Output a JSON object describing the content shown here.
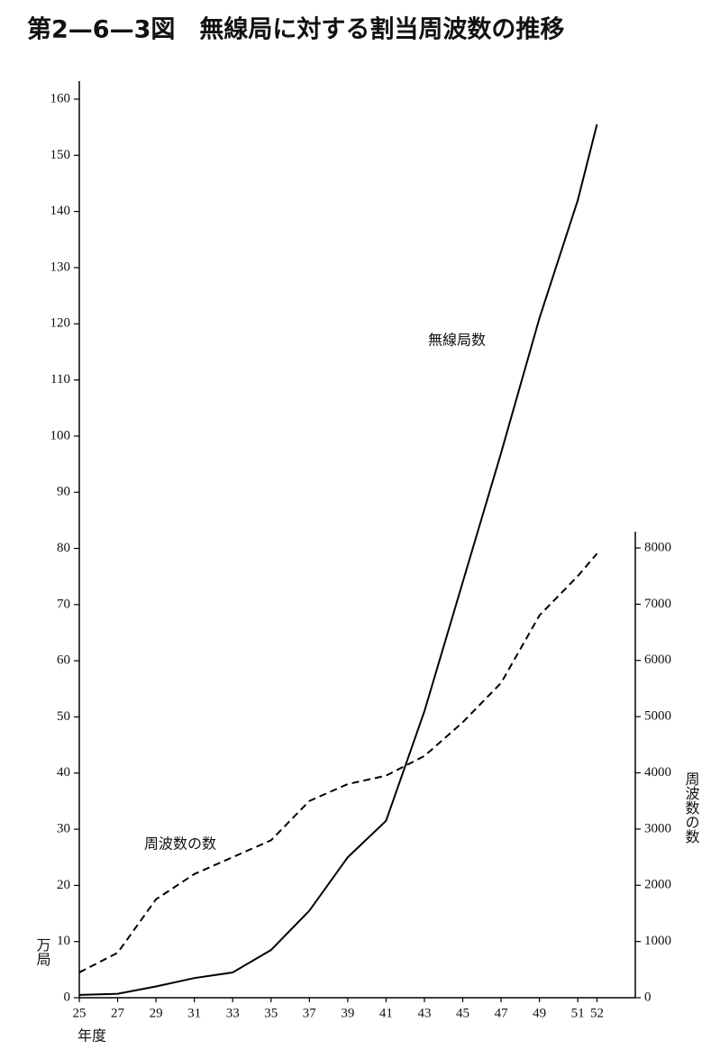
{
  "chart_data": {
    "type": "line",
    "title": "第2—6—3図　無線局に対する割当周波数の推移",
    "x_label": "年度",
    "y_label": "万局",
    "y2_label": "周波数の数",
    "x": [
      25,
      27,
      29,
      31,
      33,
      35,
      37,
      39,
      41,
      43,
      45,
      47,
      49,
      51,
      52
    ],
    "xlim": [
      25,
      54
    ],
    "xticks": [
      25,
      27,
      29,
      31,
      33,
      35,
      37,
      39,
      41,
      43,
      45,
      47,
      49,
      51,
      52
    ],
    "ylim": [
      0,
      160
    ],
    "yticks": [
      0,
      10,
      20,
      30,
      40,
      50,
      60,
      70,
      80,
      90,
      100,
      110,
      120,
      130,
      140,
      150,
      160
    ],
    "y2lim": [
      0,
      8000
    ],
    "y2ticks": [
      0,
      1000,
      2000,
      3000,
      4000,
      5000,
      6000,
      7000,
      8000
    ],
    "series": [
      {
        "name": "無線局数",
        "color": "#000000",
        "dash": "solid",
        "values": [
          0.5,
          0.7,
          2.0,
          3.5,
          4.5,
          8.5,
          15.5,
          25,
          31.5,
          51,
          74,
          97,
          121,
          142,
          155.5
        ]
      },
      {
        "name": "周波数の数",
        "color": "#000000",
        "dash": "dashed",
        "axis": "y2",
        "values": [
          450,
          800,
          1750,
          2200,
          2500,
          2800,
          3500,
          3800,
          3950,
          4300,
          4900,
          5600,
          6800,
          7500,
          7900
        ]
      }
    ]
  }
}
